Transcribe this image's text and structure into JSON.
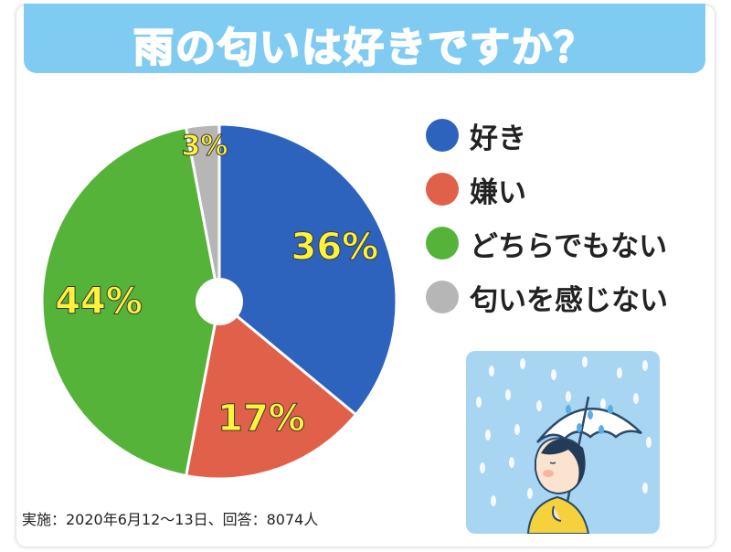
{
  "title": "雨の匂いは好きですか？",
  "footnote": "実施：2020年6月12〜13日、回答：8074人",
  "chart_data": {
    "type": "pie",
    "title": "雨の匂いは好きですか？",
    "start_angle_deg": 0,
    "direction": "clockwise",
    "label_color": "#fff23a",
    "slices": [
      {
        "label": "好き",
        "value": 36,
        "display": "36%",
        "color": "#2d63bd"
      },
      {
        "label": "嫌い",
        "value": 17,
        "display": "17%",
        "color": "#e0604a"
      },
      {
        "label": "どちらでもない",
        "value": 44,
        "display": "44%",
        "color": "#56b33a"
      },
      {
        "label": "匂いを感じない",
        "value": 3,
        "display": "3%",
        "color": "#b6b6b6"
      }
    ]
  },
  "legend": {
    "items": [
      {
        "label": "好き",
        "color": "#2d63bd"
      },
      {
        "label": "嫌い",
        "color": "#e0604a"
      },
      {
        "label": "どちらでもない",
        "color": "#56b33a"
      },
      {
        "label": "匂いを感じない",
        "color": "#b6b6b6"
      }
    ]
  },
  "colors": {
    "title_bar": "#7fcbf2",
    "illustration_sky": "#a7d5f2"
  }
}
